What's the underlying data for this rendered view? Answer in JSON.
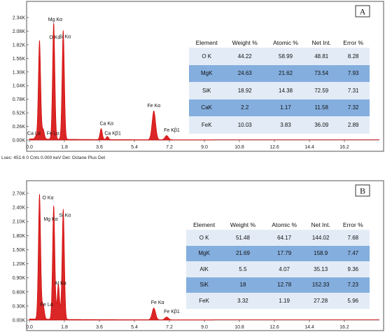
{
  "caption": "Lsec: 451.6 0 Cnts  0.000 keV Det: Octane Plus Det",
  "colors": {
    "spectrum": "#d40000",
    "frame": "#555555",
    "light_row": "#e3ecf6",
    "dark_row": "#84aede"
  },
  "chart_data": [
    {
      "type": "line",
      "panel": "A",
      "xlim": [
        0,
        18
      ],
      "ylim": [
        0,
        2.34
      ],
      "x_ticks": [
        "0.0",
        "1.8",
        "3.6",
        "5.4",
        "7.2",
        "9.0",
        "10.8",
        "12.6",
        "14.4",
        "16.2"
      ],
      "y_ticks": [
        "0.00K",
        "0.26K",
        "0.52K",
        "0.78K",
        "1.04K",
        "1.30K",
        "1.56K",
        "1.82K",
        "2.08K",
        "2.34K"
      ],
      "peaks": [
        {
          "label": "O Kα",
          "x": 0.52,
          "y": 1.88
        },
        {
          "label": "Fe Lα",
          "x": 0.71,
          "y": 0.18
        },
        {
          "label": "Mg Kα",
          "x": 1.25,
          "y": 2.22
        },
        {
          "label": "Si Kα",
          "x": 1.74,
          "y": 2.08
        },
        {
          "label": "Ca Lα",
          "x": 0.34,
          "y": 0.05
        },
        {
          "label": "Ca Kα",
          "x": 3.69,
          "y": 0.21
        },
        {
          "label": "Ca Kβ1",
          "x": 4.01,
          "y": 0.06
        },
        {
          "label": "Fe Kα",
          "x": 6.4,
          "y": 0.55
        },
        {
          "label": "Fe Kβ1",
          "x": 7.06,
          "y": 0.08
        }
      ],
      "table": {
        "headers": [
          "Element",
          "Weight %",
          "Atomic %",
          "Net Int.",
          "Error %"
        ],
        "rows": [
          [
            "O K",
            "44.22",
            "58.99",
            "48.81",
            "8.28"
          ],
          [
            "MgK",
            "24.63",
            "21.62",
            "73.54",
            "7.93"
          ],
          [
            "SiK",
            "18.92",
            "14.38",
            "72.59",
            "7.31"
          ],
          [
            "CaK",
            "2.2",
            "1.17",
            "11.58",
            "7.32"
          ],
          [
            "FeK",
            "10.03",
            "3.83",
            "36.09",
            "2.89"
          ]
        ]
      }
    },
    {
      "type": "line",
      "panel": "B",
      "xlim": [
        0,
        18
      ],
      "ylim": [
        0,
        2.7
      ],
      "x_ticks": [
        "0.0",
        "1.8",
        "3.6",
        "5.4",
        "7.2",
        "9.0",
        "10.8",
        "12.6",
        "14.4",
        "16.2"
      ],
      "y_ticks": [
        "0.00K",
        "0.30K",
        "0.60K",
        "0.90K",
        "1.20K",
        "1.50K",
        "1.80K",
        "2.10K",
        "2.40K",
        "2.70K"
      ],
      "peaks": [
        {
          "label": "O Kα",
          "x": 0.52,
          "y": 2.66
        },
        {
          "label": "Fe Lα",
          "x": 0.71,
          "y": 0.3
        },
        {
          "label": "Mg Kα",
          "x": 1.25,
          "y": 2.42
        },
        {
          "label": "Al Kα",
          "x": 1.49,
          "y": 0.75
        },
        {
          "label": "Si Kα",
          "x": 1.74,
          "y": 2.35
        },
        {
          "label": "Fe Kα",
          "x": 6.4,
          "y": 0.25
        },
        {
          "label": "Fe Kβ1",
          "x": 7.06,
          "y": 0.06
        }
      ],
      "table": {
        "headers": [
          "Element",
          "Weight %",
          "Atomic %",
          "Net Int.",
          "Error %"
        ],
        "rows": [
          [
            "O K",
            "51.48",
            "64.17",
            "144.02",
            "7.68"
          ],
          [
            "MgK",
            "21.69",
            "17.79",
            "158.9",
            "7.47"
          ],
          [
            "AlK",
            "5.5",
            "4.07",
            "35.13",
            "9.36"
          ],
          [
            "SiK",
            "18",
            "12.78",
            "152.33",
            "7.23"
          ],
          [
            "FeK",
            "3.32",
            "1.19",
            "27.28",
            "5.96"
          ]
        ]
      }
    }
  ]
}
